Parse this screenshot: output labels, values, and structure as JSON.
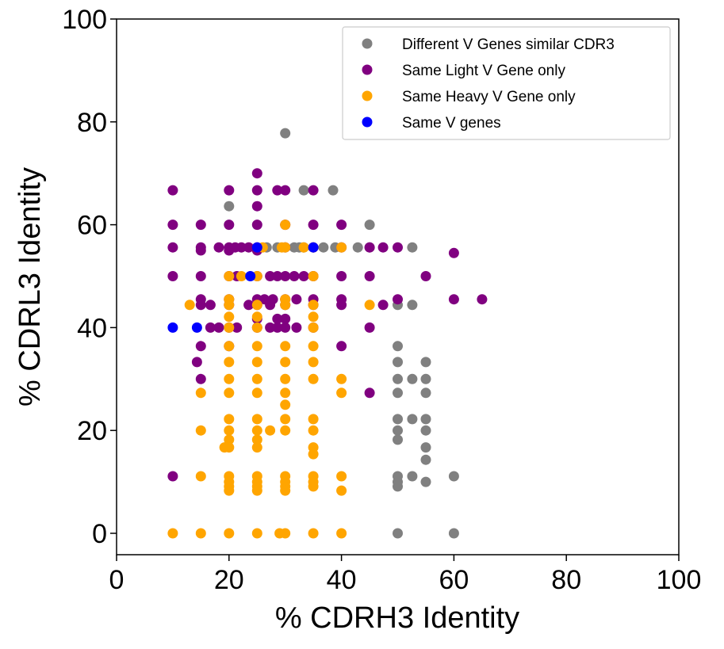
{
  "chart_data": {
    "type": "scatter",
    "xlabel": "% CDRH3 Identity",
    "ylabel": "% CDRL3 Identity",
    "xlim": [
      0,
      100
    ],
    "ylim": [
      -4,
      100
    ],
    "xticks": [
      "0",
      "20",
      "40",
      "60",
      "80",
      "100"
    ],
    "yticks": [
      "0",
      "20",
      "40",
      "60",
      "80",
      "100"
    ],
    "grid": false,
    "legend_position": "top-right",
    "series": [
      {
        "name": "Different V Genes similar CDR3",
        "color": "#808080",
        "points": [
          [
            20,
            63.6
          ],
          [
            30,
            77.8
          ],
          [
            33.3,
            66.7
          ],
          [
            38.5,
            66.7
          ],
          [
            45,
            60
          ],
          [
            26.7,
            55.6
          ],
          [
            28.6,
            55.6
          ],
          [
            31.6,
            55.6
          ],
          [
            32.5,
            55.6
          ],
          [
            33.3,
            55.6
          ],
          [
            36.8,
            55.6
          ],
          [
            38.9,
            55.6
          ],
          [
            42.9,
            55.6
          ],
          [
            45,
            55.6
          ],
          [
            52.6,
            55.6
          ],
          [
            50,
            44.4
          ],
          [
            52.6,
            44.4
          ],
          [
            50,
            36.4
          ],
          [
            50,
            33.3
          ],
          [
            55,
            33.3
          ],
          [
            50,
            30
          ],
          [
            52.6,
            30
          ],
          [
            55,
            30
          ],
          [
            50,
            27.3
          ],
          [
            55,
            27.3
          ],
          [
            50,
            22.2
          ],
          [
            52.6,
            22.2
          ],
          [
            55,
            22.2
          ],
          [
            50,
            20
          ],
          [
            55,
            20
          ],
          [
            50,
            18.2
          ],
          [
            55,
            16.7
          ],
          [
            55,
            14.3
          ],
          [
            50,
            11.1
          ],
          [
            52.6,
            11.1
          ],
          [
            60,
            11.1
          ],
          [
            50,
            10
          ],
          [
            55,
            10
          ],
          [
            50,
            9.1
          ],
          [
            50,
            0
          ],
          [
            60,
            0
          ]
        ]
      },
      {
        "name": "Same Light V Gene only",
        "color": "#800080",
        "points": [
          [
            10,
            66.7
          ],
          [
            20,
            66.7
          ],
          [
            25,
            66.7
          ],
          [
            28.6,
            66.7
          ],
          [
            30,
            66.7
          ],
          [
            35,
            66.7
          ],
          [
            25,
            70
          ],
          [
            25,
            63.6
          ],
          [
            10,
            60
          ],
          [
            15,
            60
          ],
          [
            20,
            60
          ],
          [
            25,
            60
          ],
          [
            30,
            60
          ],
          [
            35,
            60
          ],
          [
            40,
            60
          ],
          [
            10,
            55.6
          ],
          [
            15,
            55.6
          ],
          [
            18.2,
            55.6
          ],
          [
            20,
            55.6
          ],
          [
            21.1,
            55.6
          ],
          [
            22.2,
            55.6
          ],
          [
            23.5,
            55.6
          ],
          [
            25,
            55.6
          ],
          [
            30,
            55.6
          ],
          [
            35,
            55.6
          ],
          [
            40,
            55.6
          ],
          [
            45,
            55.6
          ],
          [
            47.4,
            55.6
          ],
          [
            50,
            55.6
          ],
          [
            15,
            55
          ],
          [
            20,
            55
          ],
          [
            25,
            55
          ],
          [
            60,
            54.5
          ],
          [
            10,
            50
          ],
          [
            15,
            50
          ],
          [
            20,
            50
          ],
          [
            21.4,
            50
          ],
          [
            25,
            50
          ],
          [
            27.3,
            50
          ],
          [
            28.6,
            50
          ],
          [
            30,
            50
          ],
          [
            31.6,
            50
          ],
          [
            33.3,
            50
          ],
          [
            35,
            50
          ],
          [
            40,
            50
          ],
          [
            45,
            50
          ],
          [
            55,
            50
          ],
          [
            15,
            45.5
          ],
          [
            16.7,
            44.4
          ],
          [
            15,
            44.4
          ],
          [
            20,
            45.5
          ],
          [
            25,
            45.5
          ],
          [
            26.3,
            45.5
          ],
          [
            27.8,
            45.5
          ],
          [
            30,
            45.5
          ],
          [
            32,
            45.5
          ],
          [
            35,
            45.5
          ],
          [
            40,
            45.5
          ],
          [
            50,
            45.5
          ],
          [
            60,
            45.5
          ],
          [
            65,
            45.5
          ],
          [
            20,
            44.4
          ],
          [
            23.5,
            44.4
          ],
          [
            25,
            44.4
          ],
          [
            27.3,
            44.4
          ],
          [
            30,
            44.4
          ],
          [
            35,
            44.4
          ],
          [
            40,
            44.4
          ],
          [
            47.4,
            44.4
          ],
          [
            25,
            41.7
          ],
          [
            28.6,
            41.7
          ],
          [
            30,
            41.7
          ],
          [
            16.7,
            40
          ],
          [
            18.2,
            40
          ],
          [
            20,
            40
          ],
          [
            21.4,
            40
          ],
          [
            25,
            40
          ],
          [
            27.3,
            40
          ],
          [
            28.6,
            40
          ],
          [
            30,
            40
          ],
          [
            32,
            40
          ],
          [
            35,
            40
          ],
          [
            45,
            40
          ],
          [
            15,
            36.4
          ],
          [
            20,
            36.4
          ],
          [
            40,
            36.4
          ],
          [
            14.3,
            33.3
          ],
          [
            15,
            30
          ],
          [
            45,
            27.3
          ],
          [
            10,
            11.1
          ]
        ]
      },
      {
        "name": "Same Heavy V Gene only",
        "color": "#ffa500",
        "points": [
          [
            30,
            60
          ],
          [
            26,
            55.6
          ],
          [
            29.4,
            55.6
          ],
          [
            30,
            55.6
          ],
          [
            33.3,
            55.6
          ],
          [
            35,
            55.6
          ],
          [
            40,
            55.6
          ],
          [
            20,
            50
          ],
          [
            22.2,
            50
          ],
          [
            25,
            50
          ],
          [
            35,
            50
          ],
          [
            13,
            44.4
          ],
          [
            20,
            45.5
          ],
          [
            20,
            44.4
          ],
          [
            25,
            44.4
          ],
          [
            30,
            45.5
          ],
          [
            30,
            44.4
          ],
          [
            35,
            44.4
          ],
          [
            45,
            44.4
          ],
          [
            20,
            42.1
          ],
          [
            25,
            42.1
          ],
          [
            35,
            42.1
          ],
          [
            20,
            40
          ],
          [
            25,
            40
          ],
          [
            35,
            40
          ],
          [
            20,
            36.4
          ],
          [
            25,
            36.4
          ],
          [
            30,
            36.4
          ],
          [
            35,
            36.4
          ],
          [
            20,
            33.3
          ],
          [
            25,
            33.3
          ],
          [
            30,
            33.3
          ],
          [
            35,
            33.3
          ],
          [
            20,
            30
          ],
          [
            25,
            30
          ],
          [
            30,
            30
          ],
          [
            35,
            30
          ],
          [
            40,
            30
          ],
          [
            15,
            27.3
          ],
          [
            20,
            27.3
          ],
          [
            25,
            27.3
          ],
          [
            30,
            27.3
          ],
          [
            40,
            27.3
          ],
          [
            30,
            25
          ],
          [
            20,
            22.2
          ],
          [
            25,
            22.2
          ],
          [
            30,
            22.2
          ],
          [
            35,
            22.2
          ],
          [
            15,
            20
          ],
          [
            20,
            20
          ],
          [
            25,
            20
          ],
          [
            27.3,
            20
          ],
          [
            30,
            20
          ],
          [
            35,
            20
          ],
          [
            20,
            18.2
          ],
          [
            25,
            18.2
          ],
          [
            19.2,
            16.7
          ],
          [
            20,
            16.7
          ],
          [
            25,
            16.7
          ],
          [
            35,
            16.7
          ],
          [
            35,
            15.4
          ],
          [
            15,
            11.1
          ],
          [
            20,
            11.1
          ],
          [
            25,
            11.1
          ],
          [
            30,
            11.1
          ],
          [
            35,
            11.1
          ],
          [
            40,
            11.1
          ],
          [
            20,
            10
          ],
          [
            25,
            10
          ],
          [
            30,
            10
          ],
          [
            35,
            10
          ],
          [
            20,
            9.1
          ],
          [
            25,
            9.1
          ],
          [
            30,
            9.1
          ],
          [
            35,
            9.1
          ],
          [
            20,
            8.3
          ],
          [
            25,
            8.3
          ],
          [
            30,
            8.3
          ],
          [
            40,
            8.3
          ],
          [
            10,
            0
          ],
          [
            15,
            0
          ],
          [
            20,
            0
          ],
          [
            25,
            0
          ],
          [
            29,
            0
          ],
          [
            30,
            0
          ],
          [
            35,
            0
          ],
          [
            40,
            0
          ]
        ]
      },
      {
        "name": "Same V genes",
        "color": "#0000ff",
        "points": [
          [
            25,
            55.6
          ],
          [
            35,
            55.6
          ],
          [
            23.8,
            50
          ],
          [
            10,
            40
          ],
          [
            14.3,
            40
          ]
        ]
      }
    ]
  }
}
